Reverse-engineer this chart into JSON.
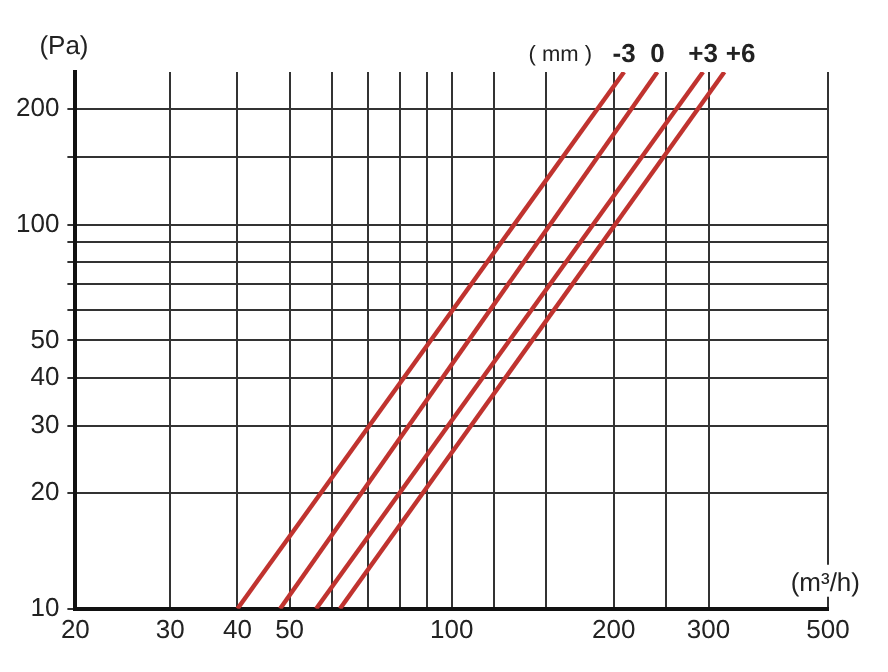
{
  "chart_data": {
    "type": "line",
    "xlabel": "(m³/h)",
    "ylabel": "(Pa)",
    "legend_title": "( mm )",
    "log": "xy",
    "grid": true,
    "legend": false,
    "marker": "none",
    "line_style": "solid",
    "xlim": [
      20,
      500
    ],
    "ylim": [
      10,
      250
    ],
    "xticks": [
      20,
      30,
      40,
      50,
      {
        "value": 60,
        "label": null
      },
      {
        "value": 70,
        "label": null
      },
      {
        "value": 80,
        "label": null
      },
      {
        "value": 90,
        "label": null
      },
      100,
      {
        "value": 120,
        "label": null
      },
      {
        "value": 150,
        "label": null
      },
      200,
      {
        "value": 250,
        "label": null
      },
      300,
      500
    ],
    "yticks": [
      10,
      20,
      30,
      40,
      50,
      {
        "value": 60,
        "label": null
      },
      {
        "value": 70,
        "label": null
      },
      {
        "value": 80,
        "label": null
      },
      {
        "value": 90,
        "label": null
      },
      100,
      {
        "value": 150,
        "label": null
      },
      200
    ],
    "series": [
      {
        "name": "-3",
        "color": "#c0332f",
        "x": [
          40,
          209
        ],
        "values": [
          10,
          250
        ]
      },
      {
        "name": "0",
        "color": "#c0332f",
        "x": [
          48,
          241
        ],
        "values": [
          10,
          250
        ]
      },
      {
        "name": "+3",
        "color": "#c0332f",
        "x": [
          56,
          293
        ],
        "values": [
          10,
          250
        ]
      },
      {
        "name": "+6",
        "color": "#c0332f",
        "x": [
          62,
          321
        ],
        "values": [
          10,
          250
        ]
      }
    ]
  }
}
